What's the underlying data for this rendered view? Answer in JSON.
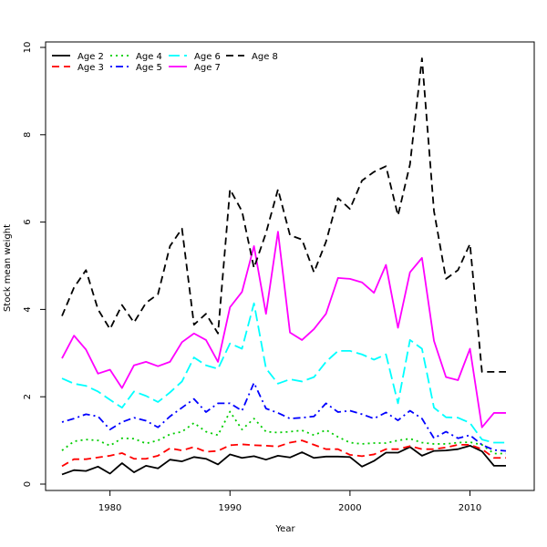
{
  "chart_data": {
    "type": "line",
    "title": "",
    "xlabel": "Year",
    "ylabel": "Stock mean weight",
    "xlim": [
      1975,
      2014
    ],
    "ylim": [
      0,
      10
    ],
    "x_ticks": [
      1980,
      1990,
      2000,
      2010
    ],
    "y_ticks": [
      0,
      2,
      4,
      6,
      8,
      10
    ],
    "grid": false,
    "legend_position": "top-left",
    "x": [
      1976,
      1977,
      1978,
      1979,
      1980,
      1981,
      1982,
      1983,
      1984,
      1985,
      1986,
      1987,
      1988,
      1989,
      1990,
      1991,
      1992,
      1993,
      1994,
      1995,
      1996,
      1997,
      1998,
      1999,
      2000,
      2001,
      2002,
      2003,
      2004,
      2005,
      2006,
      2007,
      2008,
      2009,
      2010,
      2011,
      2012,
      2013
    ],
    "series": [
      {
        "name": "Age 2",
        "color": "#000000",
        "dash": "solid",
        "values": [
          0.22,
          0.32,
          0.3,
          0.4,
          0.24,
          0.48,
          0.27,
          0.42,
          0.36,
          0.56,
          0.52,
          0.62,
          0.58,
          0.45,
          0.68,
          0.6,
          0.64,
          0.56,
          0.65,
          0.61,
          0.73,
          0.6,
          0.63,
          0.63,
          0.62,
          0.4,
          0.53,
          0.72,
          0.72,
          0.85,
          0.65,
          0.76,
          0.77,
          0.8,
          0.88,
          0.75,
          0.42,
          0.42
        ]
      },
      {
        "name": "Age 3",
        "color": "#ff0000",
        "dash": "dash",
        "values": [
          0.41,
          0.57,
          0.57,
          0.61,
          0.65,
          0.71,
          0.58,
          0.58,
          0.65,
          0.82,
          0.77,
          0.85,
          0.74,
          0.76,
          0.89,
          0.91,
          0.89,
          0.88,
          0.86,
          0.95,
          1.0,
          0.9,
          0.8,
          0.8,
          0.67,
          0.64,
          0.68,
          0.8,
          0.8,
          0.87,
          0.8,
          0.8,
          0.84,
          0.9,
          0.9,
          0.8,
          0.6,
          0.6
        ]
      },
      {
        "name": "Age 4",
        "color": "#00cd00",
        "dash": "dot",
        "values": [
          0.77,
          0.98,
          1.02,
          1.0,
          0.88,
          1.05,
          1.04,
          0.93,
          1.0,
          1.14,
          1.2,
          1.4,
          1.2,
          1.12,
          1.66,
          1.25,
          1.5,
          1.2,
          1.18,
          1.2,
          1.23,
          1.12,
          1.24,
          1.08,
          0.95,
          0.92,
          0.94,
          0.94,
          1.0,
          1.04,
          0.95,
          0.92,
          0.92,
          0.95,
          0.96,
          0.9,
          0.7,
          0.7
        ]
      },
      {
        "name": "Age 5",
        "color": "#0000ff",
        "dash": "dashdot",
        "values": [
          1.42,
          1.5,
          1.6,
          1.55,
          1.25,
          1.42,
          1.52,
          1.45,
          1.3,
          1.55,
          1.75,
          1.95,
          1.65,
          1.85,
          1.85,
          1.68,
          2.32,
          1.73,
          1.63,
          1.5,
          1.52,
          1.55,
          1.85,
          1.65,
          1.68,
          1.6,
          1.5,
          1.64,
          1.46,
          1.68,
          1.5,
          1.05,
          1.2,
          1.05,
          1.12,
          0.9,
          0.78,
          0.76
        ]
      },
      {
        "name": "Age 6",
        "color": "#00ffff",
        "dash": "longdash",
        "values": [
          2.42,
          2.3,
          2.25,
          2.12,
          1.93,
          1.75,
          2.12,
          2.02,
          1.88,
          2.1,
          2.35,
          2.9,
          2.72,
          2.64,
          3.22,
          3.1,
          4.14,
          2.65,
          2.3,
          2.4,
          2.35,
          2.45,
          2.8,
          3.05,
          3.05,
          2.97,
          2.85,
          2.97,
          1.85,
          3.3,
          3.1,
          1.75,
          1.53,
          1.52,
          1.4,
          1.02,
          0.95,
          0.95
        ]
      },
      {
        "name": "Age 7",
        "color": "#ff00ff",
        "dash": "solid",
        "values": [
          2.88,
          3.4,
          3.08,
          2.53,
          2.62,
          2.2,
          2.72,
          2.8,
          2.7,
          2.8,
          3.25,
          3.45,
          3.3,
          2.8,
          4.05,
          4.4,
          5.45,
          3.9,
          5.78,
          3.47,
          3.3,
          3.55,
          3.9,
          4.72,
          4.7,
          4.62,
          4.38,
          5.02,
          3.58,
          4.85,
          5.18,
          3.28,
          2.45,
          2.38,
          3.1,
          1.3,
          1.63,
          1.63
        ]
      },
      {
        "name": "Age 8",
        "color": "#000000",
        "dash": "dash",
        "values": [
          3.85,
          4.5,
          4.9,
          4.0,
          3.55,
          4.1,
          3.7,
          4.15,
          4.35,
          5.45,
          5.85,
          3.65,
          3.9,
          3.45,
          6.75,
          6.25,
          4.95,
          5.75,
          6.75,
          5.7,
          5.6,
          4.85,
          5.55,
          6.55,
          6.3,
          6.95,
          7.15,
          7.28,
          6.15,
          7.32,
          9.75,
          6.25,
          4.7,
          4.9,
          5.5,
          2.57,
          2.57,
          2.57
        ]
      }
    ]
  }
}
